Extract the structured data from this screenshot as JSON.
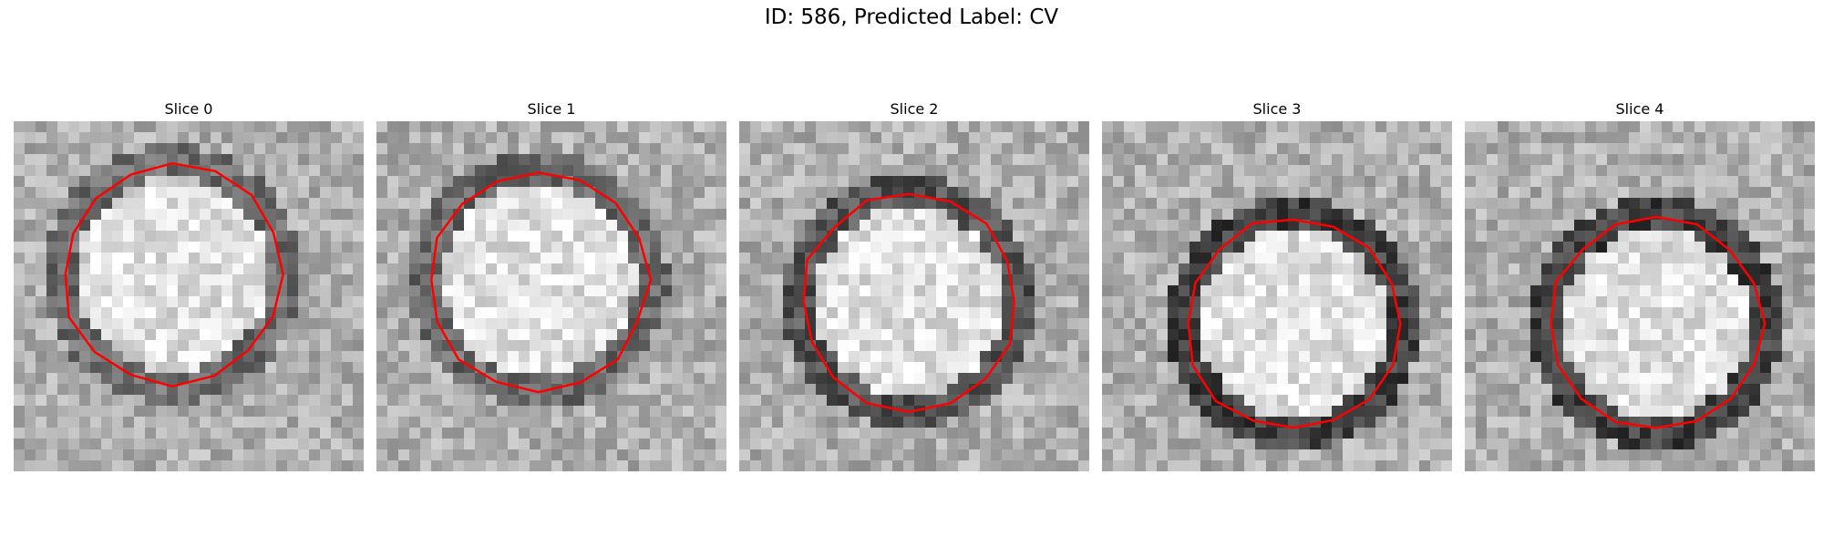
{
  "figure": {
    "title": "ID: 586, Predicted Label: CV"
  },
  "panels": [
    {
      "title": "Slice 0",
      "ring_mean": 110,
      "contour_color": "#ff0000"
    },
    {
      "title": "Slice 1",
      "ring_mean": 105,
      "contour_color": "#ff0000"
    },
    {
      "title": "Slice 2",
      "ring_mean": 85,
      "contour_color": "#ff0000"
    },
    {
      "title": "Slice 3",
      "ring_mean": 65,
      "contour_color": "#ff0000"
    },
    {
      "title": "Slice 4",
      "ring_mean": 65,
      "contour_color": "#ff0000"
    }
  ]
}
